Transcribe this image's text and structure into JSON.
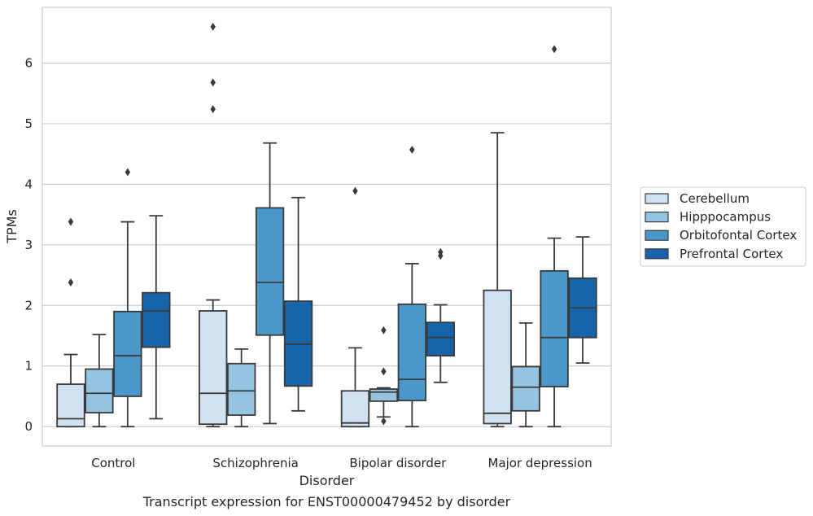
{
  "chart_data": {
    "type": "box",
    "xlabel": "Disorder",
    "ylabel": "TPMs",
    "caption": "Transcript expression for ENST00000479452 by disorder",
    "ylim": [
      -0.32,
      6.92
    ],
    "yticks": [
      0,
      1,
      2,
      3,
      4,
      5,
      6
    ],
    "grid": "horizontal",
    "legend_position": "right",
    "categories": [
      "Control",
      "Schizophrenia",
      "Bipolar disorder",
      "Major depression"
    ],
    "series": [
      {
        "name": "Cerebellum",
        "color": "#d0e1f2",
        "boxes": [
          {
            "whislo": 0.0,
            "q1": 0.0,
            "med": 0.13,
            "q3": 0.7,
            "whishi": 1.19,
            "fliers": [
              2.38,
              3.38
            ]
          },
          {
            "whislo": 0.0,
            "q1": 0.04,
            "med": 0.55,
            "q3": 1.91,
            "whishi": 2.09,
            "fliers": [
              5.24,
              5.68,
              6.6
            ]
          },
          {
            "whislo": 0.0,
            "q1": 0.0,
            "med": 0.06,
            "q3": 0.59,
            "whishi": 1.3,
            "fliers": [
              3.89
            ]
          },
          {
            "whislo": 0.0,
            "q1": 0.05,
            "med": 0.22,
            "q3": 2.25,
            "whishi": 4.85,
            "fliers": []
          }
        ]
      },
      {
        "name": "Hipppocampus",
        "color": "#94c4df",
        "boxes": [
          {
            "whislo": 0.0,
            "q1": 0.23,
            "med": 0.55,
            "q3": 0.95,
            "whishi": 1.52,
            "fliers": []
          },
          {
            "whislo": 0.0,
            "q1": 0.19,
            "med": 0.59,
            "q3": 1.04,
            "whishi": 1.28,
            "fliers": []
          },
          {
            "whislo": 0.16,
            "q1": 0.42,
            "med": 0.57,
            "q3": 0.62,
            "whishi": 0.64,
            "fliers": [
              0.09,
              0.91,
              1.59
            ]
          },
          {
            "whislo": 0.0,
            "q1": 0.26,
            "med": 0.65,
            "q3": 0.99,
            "whishi": 1.71,
            "fliers": []
          }
        ]
      },
      {
        "name": "Orbitofontal Cortex",
        "color": "#4a98c9",
        "boxes": [
          {
            "whislo": 0.0,
            "q1": 0.5,
            "med": 1.17,
            "q3": 1.9,
            "whishi": 3.38,
            "fliers": [
              4.2
            ]
          },
          {
            "whislo": 0.05,
            "q1": 1.51,
            "med": 2.38,
            "q3": 3.61,
            "whishi": 4.68,
            "fliers": []
          },
          {
            "whislo": 0.0,
            "q1": 0.43,
            "med": 0.78,
            "q3": 2.02,
            "whishi": 2.69,
            "fliers": [
              4.57
            ]
          },
          {
            "whislo": 0.0,
            "q1": 0.66,
            "med": 1.47,
            "q3": 2.57,
            "whishi": 3.11,
            "fliers": [
              6.23
            ]
          }
        ]
      },
      {
        "name": "Prefrontal Cortex",
        "color": "#1764ab",
        "boxes": [
          {
            "whislo": 0.13,
            "q1": 1.31,
            "med": 1.91,
            "q3": 2.21,
            "whishi": 3.48,
            "fliers": []
          },
          {
            "whislo": 0.26,
            "q1": 0.67,
            "med": 1.36,
            "q3": 2.07,
            "whishi": 3.78,
            "fliers": []
          },
          {
            "whislo": 0.73,
            "q1": 1.17,
            "med": 1.47,
            "q3": 1.72,
            "whishi": 2.01,
            "fliers": [
              2.82,
              2.88
            ]
          },
          {
            "whislo": 1.05,
            "q1": 1.47,
            "med": 1.96,
            "q3": 2.45,
            "whishi": 3.13,
            "fliers": []
          }
        ]
      }
    ]
  }
}
